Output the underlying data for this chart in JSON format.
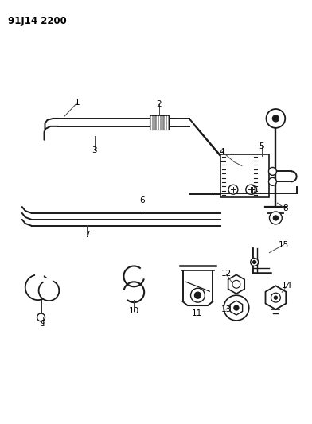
{
  "title": "91J14 2200",
  "bg_color": "#ffffff",
  "line_color": "#1a1a1a",
  "label_color": "#000000",
  "figsize": [
    3.92,
    5.33
  ],
  "dpi": 100
}
